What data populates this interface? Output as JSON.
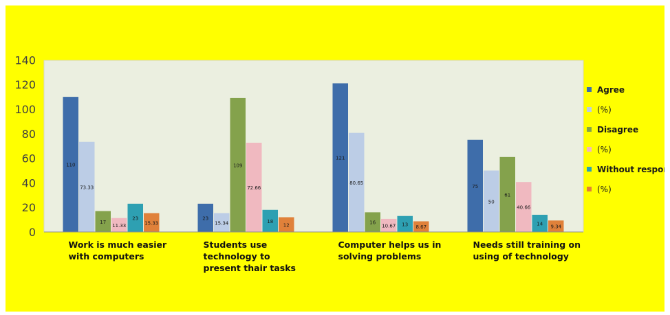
{
  "chart_data": {
    "type": "bar",
    "categories": [
      [
        "Work is much easier",
        "with computers"
      ],
      [
        "Students use",
        "technology to",
        "present thair tasks"
      ],
      [
        "Computer helps us in",
        "solving problems"
      ],
      [
        "Needs still training on",
        "using of technology"
      ]
    ],
    "series": [
      {
        "name": "Agree",
        "color": "#3e6daa",
        "values": [
          110,
          23,
          121,
          75
        ],
        "labels": [
          "110",
          "23",
          "121",
          "75"
        ]
      },
      {
        "name": "(%)",
        "color": "#bccde6",
        "values": [
          73.33,
          15.34,
          80.65,
          50
        ],
        "labels": [
          "73.33",
          "15.34",
          "80.65",
          "50"
        ]
      },
      {
        "name": "Disagree",
        "color": "#84a24c",
        "values": [
          17,
          109,
          16,
          61
        ],
        "labels": [
          "17",
          "109",
          "16",
          "61"
        ]
      },
      {
        "name": "(%)",
        "color": "#f0b9c0",
        "values": [
          11.33,
          72.66,
          10.67,
          40.66
        ],
        "labels": [
          "11.33",
          "72.66",
          "10.67",
          "40.66"
        ]
      },
      {
        "name": "Without respons",
        "color": "#2ea0b2",
        "values": [
          23,
          18,
          13,
          14
        ],
        "labels": [
          "23",
          "18",
          "13",
          "14"
        ]
      },
      {
        "name": "(%)",
        "color": "#e0813a",
        "values": [
          15.33,
          12,
          8.67,
          9.34
        ],
        "labels": [
          "15.33",
          "12",
          "8.67",
          "9.34"
        ]
      }
    ],
    "ylim": [
      0,
      140
    ],
    "yticks": [
      0,
      20,
      40,
      60,
      80,
      100,
      120,
      140
    ],
    "grid": false,
    "legend_position": "right",
    "plot_background": "#ebefe0",
    "page_background": "#ffff00"
  }
}
